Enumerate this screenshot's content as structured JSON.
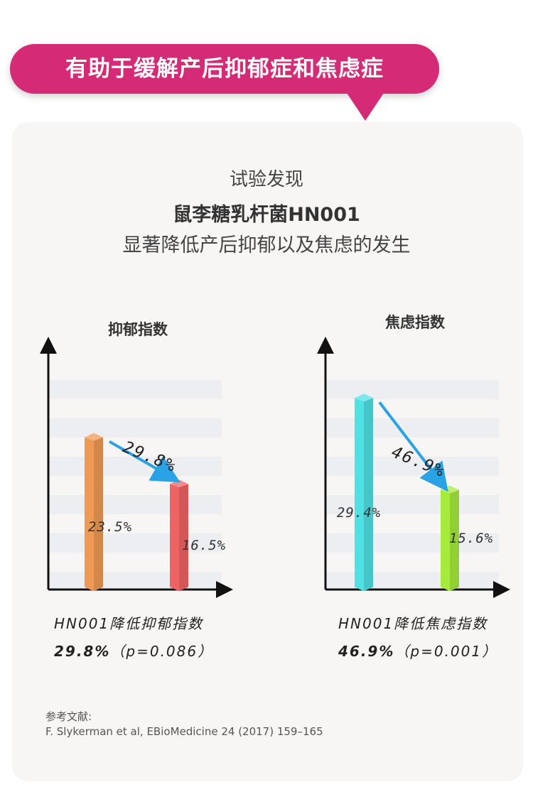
{
  "banner": {
    "title": "有助于缓解产后抑郁症和焦虑症"
  },
  "intro": {
    "line1": "试验发现",
    "line2": "鼠李糖乳杆菌HN001",
    "line3": "显著降低产后抑郁以及焦虑的发生"
  },
  "chart_data": [
    {
      "type": "bar",
      "title": "抑郁指数",
      "values": [
        23.5,
        16.5
      ],
      "value_labels": [
        "23.5%",
        "16.5%"
      ],
      "colors": [
        "#ee9a54",
        "#f06363"
      ],
      "reduction_label": "29.8%",
      "grid": "horizontal bands",
      "ylim": [
        0,
        40
      ]
    },
    {
      "type": "bar",
      "title": "焦虑指数",
      "values": [
        29.4,
        15.6
      ],
      "value_labels": [
        "29.4%",
        "15.6%"
      ],
      "colors": [
        "#4fe1e3",
        "#a6ea3c"
      ],
      "reduction_label": "46.9%",
      "grid": "horizontal bands",
      "ylim": [
        0,
        40
      ]
    }
  ],
  "captions": [
    {
      "line1": "HN001降低抑郁指数",
      "pct": "29.8%",
      "pval": "（p=0.086）"
    },
    {
      "line1": "HN001降低焦虑指数",
      "pct": "46.9%",
      "pval": "（p=0.001）"
    }
  ],
  "reference": {
    "heading": "参考文献:",
    "citation": "F. Slykerman et al, EBioMedicine 24 (2017) 159–165"
  },
  "colors": {
    "brand": "#d52a75",
    "arrow": "#29a3e6",
    "card": "#f7f6f5"
  }
}
